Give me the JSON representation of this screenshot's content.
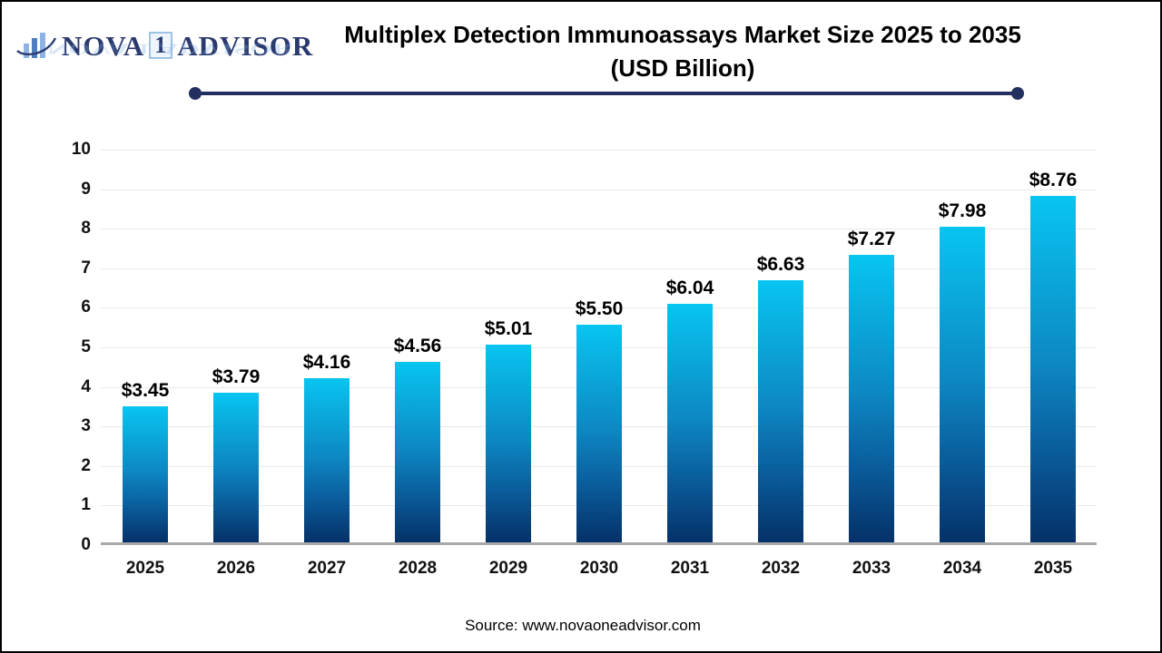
{
  "page": {
    "background": "#ffffff",
    "border_color": "#000000"
  },
  "logo": {
    "nova": "NOVA",
    "one": "1",
    "advisor": "ADVISOR",
    "reflection": "NOVA 1 ADVISOR",
    "icon": "bar-chart-swoosh-icon",
    "text_color": "#2b3a6e",
    "box_border_color": "#9fc3e3"
  },
  "title": {
    "line1": "Multiplex Detection Immunoassays Market Size 2025 to 2035",
    "line2": "(USD Billion)"
  },
  "divider": {
    "color": "#232f5f"
  },
  "source": {
    "text": "Source: www.novaoneadvisor.com"
  },
  "chart_data": {
    "type": "bar",
    "title": "Multiplex Detection Immunoassays Market Size 2025 to 2035 (USD Billion)",
    "categories": [
      "2025",
      "2026",
      "2027",
      "2028",
      "2029",
      "2030",
      "2031",
      "2032",
      "2033",
      "2034",
      "2035"
    ],
    "values": [
      3.45,
      3.79,
      4.16,
      4.56,
      5.01,
      5.5,
      6.04,
      6.63,
      7.27,
      7.98,
      8.76
    ],
    "value_labels": [
      "$3.45",
      "$3.79",
      "$4.16",
      "$4.56",
      "$5.01",
      "$5.50",
      "$6.04",
      "$6.63",
      "$7.27",
      "$7.98",
      "$8.76"
    ],
    "xlabel": "",
    "ylabel": "",
    "ylim": [
      0,
      10
    ],
    "yticks": [
      0,
      1,
      2,
      3,
      4,
      5,
      6,
      7,
      8,
      9,
      10
    ],
    "grid": true,
    "legend": "none",
    "bar_gradient_top": "#08c5f1",
    "bar_gradient_bottom": "#053168",
    "gridline_color": "#e9e9e9",
    "axis_line_color": "#a9a9a9"
  }
}
